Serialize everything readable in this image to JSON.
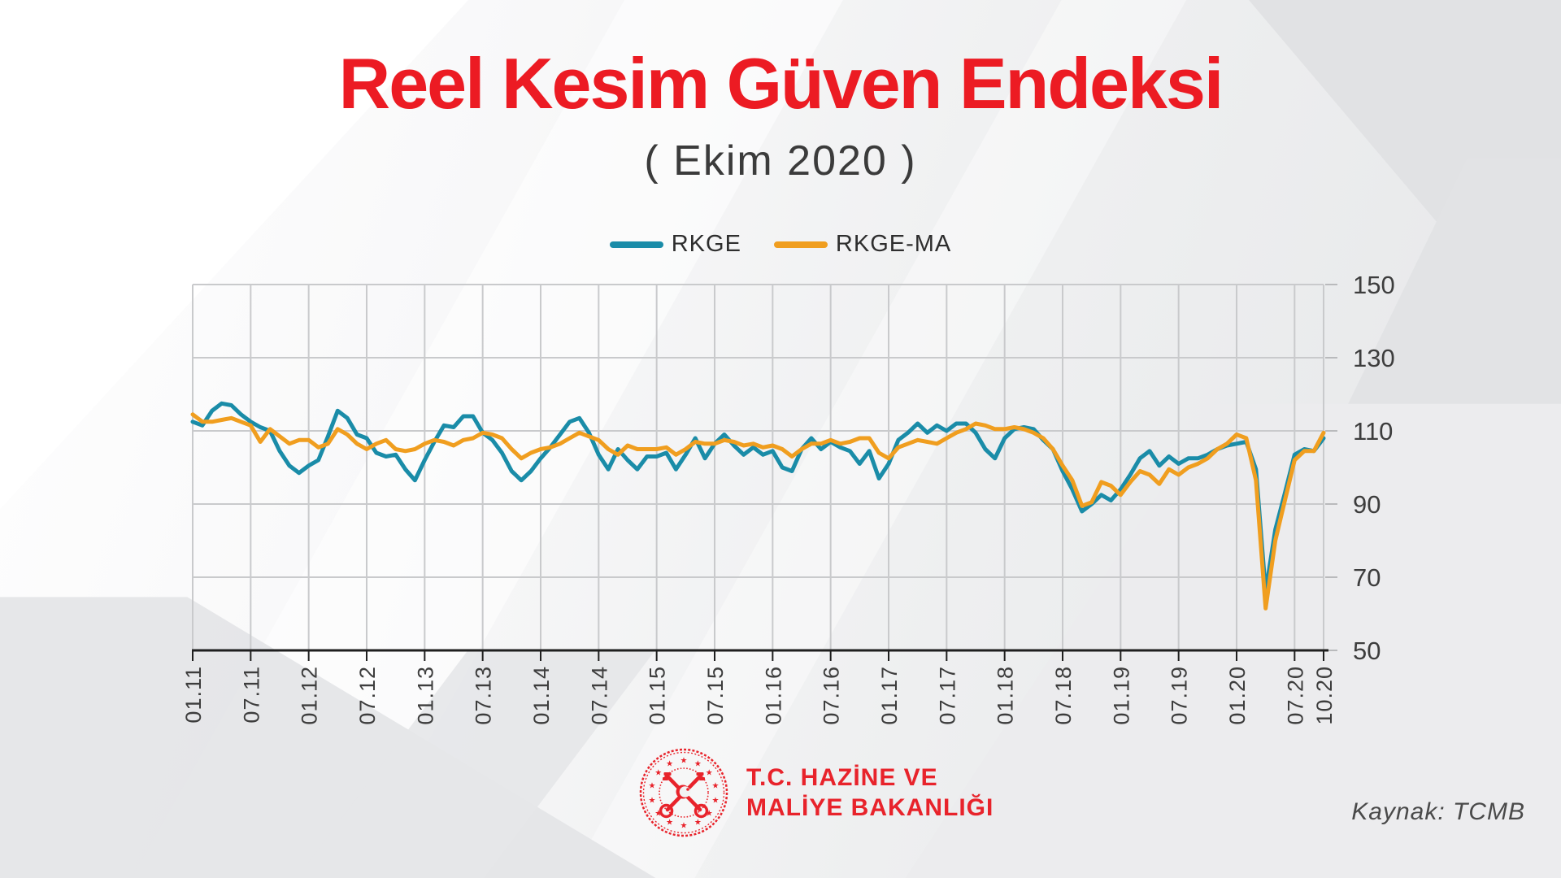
{
  "header": {
    "title": "Reel Kesim Güven Endeksi",
    "subtitle": "( Ekim 2020 )"
  },
  "legend": {
    "items": [
      {
        "label": "RKGE",
        "color": "#1a8ca8"
      },
      {
        "label": "RKGE-MA",
        "color": "#f09e1f"
      }
    ]
  },
  "footer": {
    "org_line1": "T.C. HAZİNE VE",
    "org_line2": "MALİYE BAKANLIĞI",
    "source": "Kaynak: TCMB"
  },
  "colors": {
    "accent_red": "#ec1b23",
    "logo_red": "#e8232b",
    "rkge_teal": "#1a8ca8",
    "rkge_ma_orange": "#f09e1f",
    "grid_gray": "#c9cacc",
    "axis_dark": "#1f1f1f",
    "label_gray": "#3d3d3d"
  },
  "chart_data": {
    "type": "line",
    "title": "Reel Kesim Güven Endeksi ( Ekim 2020 )",
    "x_start": "2011-01",
    "x_end": "2020-10",
    "frequency": "monthly",
    "xlabel": "",
    "ylabel": "",
    "ylim": [
      50,
      150
    ],
    "y_ticks": [
      50,
      70,
      90,
      110,
      130,
      150
    ],
    "y_axis_side": "right",
    "grid": true,
    "legend_position": "top",
    "x_ticks": [
      {
        "m": 0,
        "label": "01.11"
      },
      {
        "m": 6,
        "label": "07.11"
      },
      {
        "m": 12,
        "label": "01.12"
      },
      {
        "m": 18,
        "label": "07.12"
      },
      {
        "m": 24,
        "label": "01.13"
      },
      {
        "m": 30,
        "label": "07.13"
      },
      {
        "m": 36,
        "label": "01.14"
      },
      {
        "m": 42,
        "label": "07.14"
      },
      {
        "m": 48,
        "label": "01.15"
      },
      {
        "m": 54,
        "label": "07.15"
      },
      {
        "m": 60,
        "label": "01.16"
      },
      {
        "m": 66,
        "label": "07.16"
      },
      {
        "m": 72,
        "label": "01.17"
      },
      {
        "m": 78,
        "label": "07.17"
      },
      {
        "m": 84,
        "label": "01.18"
      },
      {
        "m": 90,
        "label": "07.18"
      },
      {
        "m": 96,
        "label": "01.19"
      },
      {
        "m": 102,
        "label": "07.19"
      },
      {
        "m": 108,
        "label": "01.20"
      },
      {
        "m": 114,
        "label": "07.20"
      },
      {
        "m": 117,
        "label": "10.20"
      }
    ],
    "series": [
      {
        "name": "RKGE",
        "color": "#1a8ca8",
        "values": [
          112.5,
          111.5,
          115.5,
          117.5,
          117,
          114.5,
          112.5,
          111,
          110,
          104.5,
          100.5,
          98.5,
          100.5,
          102,
          108.5,
          115.5,
          113.5,
          109,
          108,
          104,
          103,
          103.5,
          99.5,
          96.5,
          102,
          107,
          111.5,
          111,
          114,
          114,
          109.5,
          107.5,
          104,
          99,
          96.5,
          99,
          102.5,
          105.5,
          109,
          112.5,
          113.5,
          109.5,
          103.5,
          99.5,
          105,
          102,
          99.5,
          103,
          103,
          104,
          99.5,
          103.5,
          108,
          102.5,
          106.5,
          109,
          106,
          103.5,
          105.5,
          103.5,
          104.5,
          100,
          99,
          105,
          108,
          105,
          107,
          105.5,
          104.5,
          101,
          104.5,
          97,
          101,
          107.5,
          109.5,
          112,
          109.5,
          111.5,
          110,
          112,
          112,
          109.5,
          105,
          102.5,
          108,
          110.5,
          111,
          110.5,
          107.5,
          105,
          99,
          94,
          88,
          90,
          92.5,
          91,
          94,
          98,
          102.5,
          104.5,
          100.5,
          103,
          101,
          102.5,
          102.5,
          103.5,
          105,
          106,
          106.5,
          107,
          99.5,
          66,
          83,
          93,
          103.5,
          105,
          104.5,
          108
        ]
      },
      {
        "name": "RKGE-MA",
        "color": "#f09e1f",
        "values": [
          114.5,
          112.5,
          112.5,
          113,
          113.5,
          112.5,
          111.5,
          107,
          110.5,
          108.5,
          106.5,
          107.5,
          107.5,
          105.5,
          106.5,
          110.5,
          109,
          106.5,
          105,
          106.5,
          107.5,
          105,
          104.5,
          105,
          106.5,
          107.5,
          107,
          106,
          107.5,
          108,
          109.5,
          109,
          108,
          105,
          102.5,
          104,
          105,
          105.5,
          106.5,
          108,
          109.5,
          108.5,
          107.5,
          105,
          103.5,
          106,
          105,
          105,
          105,
          105.5,
          103.5,
          105,
          107,
          106.5,
          106.5,
          107.5,
          107,
          106,
          106.5,
          105.5,
          106,
          105,
          103,
          105,
          106.5,
          106.5,
          107.5,
          106.5,
          107,
          108,
          108,
          104,
          102.5,
          105.5,
          106.5,
          107.5,
          107,
          106.5,
          108,
          109.5,
          110.5,
          112,
          111.5,
          110.5,
          110.5,
          111,
          110.5,
          109.5,
          108,
          105,
          100.5,
          96.5,
          89.5,
          90.5,
          96,
          95,
          92.5,
          96,
          99,
          98,
          95.5,
          99.5,
          98,
          100,
          101,
          102.5,
          105,
          106.5,
          109,
          108,
          96.5,
          61.5,
          80,
          91,
          102,
          104.5,
          104.5,
          109.5
        ]
      }
    ]
  }
}
